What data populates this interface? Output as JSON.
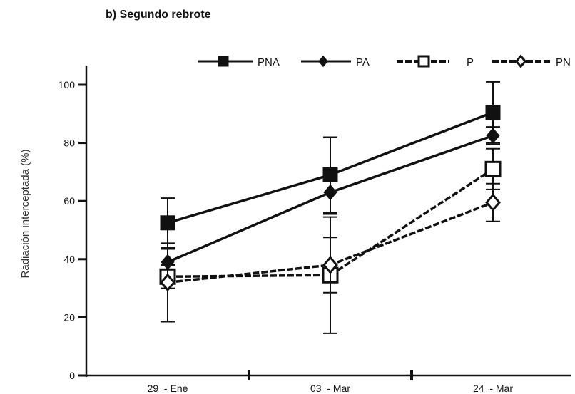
{
  "chart_data": {
    "type": "line",
    "title": "b) Segundo rebrote",
    "ylabel": "Radiación interceptada (%)",
    "xlabel": "",
    "categories": [
      "29  - Ene",
      "03  - Mar",
      "24  - Mar"
    ],
    "ylim": [
      0,
      100
    ],
    "yticks": [
      0,
      20,
      40,
      60,
      80,
      100
    ],
    "grid": false,
    "legend_position": "top",
    "series": [
      {
        "name": "PNA",
        "marker": "square-filled",
        "line": "solid",
        "color": "#111111",
        "values": [
          52.5,
          69,
          90.5
        ],
        "errors": [
          8.5,
          13,
          10.5
        ]
      },
      {
        "name": "PA",
        "marker": "diamond-filled",
        "line": "solid",
        "color": "#111111",
        "values": [
          39,
          63,
          82.5
        ],
        "errors": [
          4.5,
          7.5,
          3
        ]
      },
      {
        "name": "P",
        "marker": "square-open",
        "line": "dashed",
        "color": "#111111",
        "values": [
          34,
          34.5,
          71
        ],
        "errors": [
          4,
          20,
          7
        ]
      },
      {
        "name": "PN",
        "marker": "diamond-open",
        "line": "dashed",
        "color": "#111111",
        "values": [
          32,
          38,
          59.5
        ],
        "errors": [
          13.5,
          9.5,
          6.5
        ]
      }
    ]
  }
}
